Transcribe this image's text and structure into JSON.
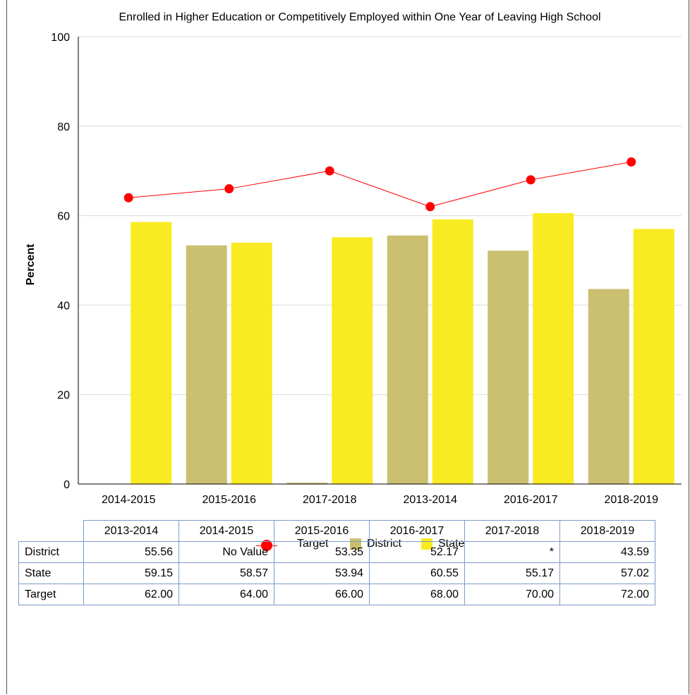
{
  "chart_data": {
    "type": "bar",
    "title": "Enrolled in Higher Education or Competitively Employed within One Year of Leaving High School",
    "ylabel": "Percent",
    "xlabel": "",
    "ylim": [
      0,
      100
    ],
    "yticks": [
      0,
      20,
      40,
      60,
      80,
      100
    ],
    "grid": true,
    "legend_position": "bottom",
    "categories": [
      "2014-2015",
      "2015-2016",
      "2017-2018",
      "2013-2014",
      "2016-2017",
      "2018-2019"
    ],
    "series": [
      {
        "name": "District",
        "kind": "bar",
        "color": "#cbbf70",
        "values": [
          null,
          53.35,
          0.3,
          55.56,
          52.17,
          43.59
        ]
      },
      {
        "name": "State",
        "kind": "bar",
        "color": "#f8eb22",
        "values": [
          58.57,
          53.94,
          55.17,
          59.15,
          60.55,
          57.02
        ]
      },
      {
        "name": "Target",
        "kind": "line",
        "color": "#ff0000",
        "values": [
          64.0,
          66.0,
          70.0,
          62.0,
          68.0,
          72.0
        ]
      }
    ],
    "legend": [
      "Target",
      "District",
      "State"
    ]
  },
  "table": {
    "columns": [
      "2013-2014",
      "2014-2015",
      "2015-2016",
      "2016-2017",
      "2017-2018",
      "2018-2019"
    ],
    "rows": [
      {
        "label": "District",
        "values": [
          "55.56",
          "No Value",
          "53.35",
          "52.17",
          "*",
          "43.59"
        ]
      },
      {
        "label": "State",
        "values": [
          "59.15",
          "58.57",
          "53.94",
          "60.55",
          "55.17",
          "57.02"
        ]
      },
      {
        "label": "Target",
        "values": [
          "62.00",
          "64.00",
          "66.00",
          "68.00",
          "70.00",
          "72.00"
        ]
      }
    ]
  }
}
